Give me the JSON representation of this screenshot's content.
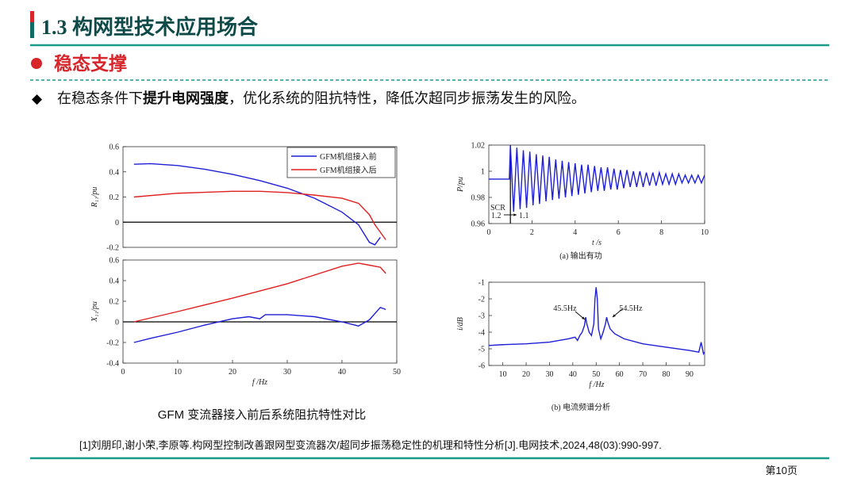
{
  "header": {
    "title": "1.3 构网型技术应用场合"
  },
  "section": {
    "title": "稳态支撑"
  },
  "bullet": {
    "parts": [
      "在稳态条件下",
      "提升电网强度",
      "，优化系统的阻抗特性，降低次超同步振荡发生的风险。"
    ]
  },
  "chart_data": [
    {
      "type": "line",
      "ylabel": "R₁₁/pu",
      "xlim": [
        0,
        50
      ],
      "ylim": [
        -0.2,
        0.6
      ],
      "yticks": [
        -0.2,
        0,
        0.2,
        0.4,
        0.6
      ],
      "zero_line": true,
      "legend": "upper right",
      "series": [
        {
          "name": "GFM机组接入前",
          "color": "#1f1fd6",
          "x": [
            2,
            5,
            10,
            15,
            20,
            25,
            30,
            35,
            40,
            43,
            45,
            46,
            47
          ],
          "values": [
            0.46,
            0.465,
            0.45,
            0.42,
            0.38,
            0.33,
            0.27,
            0.19,
            0.08,
            -0.02,
            -0.16,
            -0.18,
            -0.12
          ]
        },
        {
          "name": "GFM机组接入后",
          "color": "#e02020",
          "x": [
            2,
            10,
            20,
            25,
            30,
            35,
            40,
            43,
            45,
            46,
            48
          ],
          "values": [
            0.2,
            0.23,
            0.245,
            0.245,
            0.235,
            0.215,
            0.19,
            0.15,
            0.06,
            -0.02,
            -0.14
          ]
        }
      ]
    },
    {
      "type": "line",
      "ylabel": "X₁₁/pu",
      "xlabel": "f /Hz",
      "xlim": [
        0,
        50
      ],
      "xticks": [
        0,
        10,
        20,
        30,
        40,
        50
      ],
      "ylim": [
        -0.4,
        0.6
      ],
      "yticks": [
        -0.4,
        -0.2,
        0,
        0.2,
        0.4,
        0.6
      ],
      "zero_line": true,
      "series": [
        {
          "name": "GFM机组接入前",
          "color": "#1f1fd6",
          "x": [
            2,
            5,
            10,
            15,
            20,
            23,
            25,
            26,
            30,
            35,
            40,
            43,
            45,
            47,
            48
          ],
          "values": [
            -0.2,
            -0.16,
            -0.1,
            -0.03,
            0.03,
            0.05,
            0.03,
            0.07,
            0.07,
            0.05,
            0,
            -0.04,
            0.02,
            0.14,
            0.12
          ]
        },
        {
          "name": "GFM机组接入后",
          "color": "#e02020",
          "x": [
            2,
            10,
            20,
            30,
            40,
            43,
            45,
            47,
            48
          ],
          "values": [
            0,
            0.1,
            0.23,
            0.37,
            0.54,
            0.57,
            0.55,
            0.53,
            0.47
          ]
        }
      ]
    },
    {
      "type": "line",
      "ylabel": "P/pu",
      "xlabel": "t /s",
      "caption": "(a) 输出有功",
      "xlim": [
        0,
        10
      ],
      "xticks": [
        0,
        2,
        4,
        6,
        8,
        10
      ],
      "ylim": [
        0.96,
        1.02
      ],
      "yticks": [
        0.96,
        0.98,
        1,
        1.02
      ],
      "event_x": 1,
      "annotations": [
        "SCR",
        "1.2",
        "1.1"
      ],
      "series": [
        {
          "color": "#1f1fd6",
          "x": [
            0,
            0.5,
            0.95,
            1,
            1.15,
            1.3,
            1.45,
            1.6,
            1.75,
            1.9,
            2.05,
            2.2,
            2.35,
            2.5,
            2.65,
            2.8,
            2.95,
            3.1,
            3.25,
            3.4,
            3.55,
            3.7,
            3.85,
            4,
            4.15,
            4.3,
            4.45,
            4.6,
            4.75,
            4.9,
            5.05,
            5.2,
            5.35,
            5.5,
            5.65,
            5.8,
            5.95,
            6.1,
            6.25,
            6.4,
            6.55,
            6.7,
            6.85,
            7,
            7.15,
            7.3,
            7.45,
            7.6,
            7.75,
            7.9,
            8.05,
            8.2,
            8.35,
            8.5,
            8.65,
            8.8,
            8.95,
            9.1,
            9.25,
            9.4,
            9.55,
            9.7,
            9.85,
            10
          ],
          "values": [
            0.994,
            0.994,
            0.994,
            1.02,
            0.969,
            1.018,
            0.971,
            1.016,
            0.972,
            1.015,
            0.974,
            1.013,
            0.975,
            1.012,
            0.977,
            1.011,
            0.978,
            1.009,
            0.979,
            1.008,
            0.98,
            1.007,
            0.981,
            1.006,
            0.982,
            1.005,
            0.983,
            1.005,
            0.984,
            1.004,
            0.985,
            1.003,
            0.985,
            1.003,
            0.986,
            1.002,
            0.986,
            1.001,
            0.987,
            1.001,
            0.988,
            1,
            0.988,
            1,
            0.988,
            0.999,
            0.989,
            0.999,
            0.989,
            0.999,
            0.99,
            0.998,
            0.99,
            0.998,
            0.99,
            0.998,
            0.991,
            0.997,
            0.991,
            0.997,
            0.991,
            0.997,
            0.991,
            0.997
          ]
        }
      ]
    },
    {
      "type": "line",
      "ylabel": "i/dB",
      "xlabel": "f /Hz",
      "caption": "(b) 电流频谱分析",
      "xlim": [
        4,
        96.5
      ],
      "xticks": [
        10,
        20,
        30,
        40,
        50,
        60,
        70,
        80,
        90
      ],
      "ylim": [
        -6,
        -1
      ],
      "yticks": [
        -6,
        -5,
        -4,
        -3,
        -2,
        -1
      ],
      "annotations": [
        "45.5Hz",
        "54.5Hz"
      ],
      "series": [
        {
          "color": "#1f1fd6",
          "x": [
            4,
            10,
            20,
            30,
            38,
            41,
            42,
            43,
            44,
            45,
            45.5,
            46,
            47,
            48,
            49,
            49.5,
            50,
            50.5,
            51,
            52,
            53,
            54,
            54.5,
            55,
            56,
            58,
            62,
            70,
            80,
            90,
            94,
            95,
            96,
            96.5
          ],
          "values": [
            -4.8,
            -4.75,
            -4.7,
            -4.6,
            -4.4,
            -4.3,
            -4.5,
            -4.2,
            -4,
            -3.6,
            -3.1,
            -3.5,
            -4,
            -4.2,
            -3.5,
            -2,
            -1.3,
            -2,
            -3.8,
            -4.4,
            -4,
            -3.5,
            -3.1,
            -3.4,
            -3.8,
            -4.1,
            -4.4,
            -4.7,
            -4.9,
            -5.1,
            -5.2,
            -4.6,
            -5.3,
            -5.2
          ]
        }
      ]
    }
  ],
  "figure_caption": "GFM 变流器接入前后系统阻抗特性对比",
  "reference": "[1]刘朋印,谢小荣,李原等.构网型控制改善跟网型变流器次/超同步振荡稳定性的机理和特性分析[J].电网技术,2024,48(03):990-997.",
  "page_number": "第10页"
}
